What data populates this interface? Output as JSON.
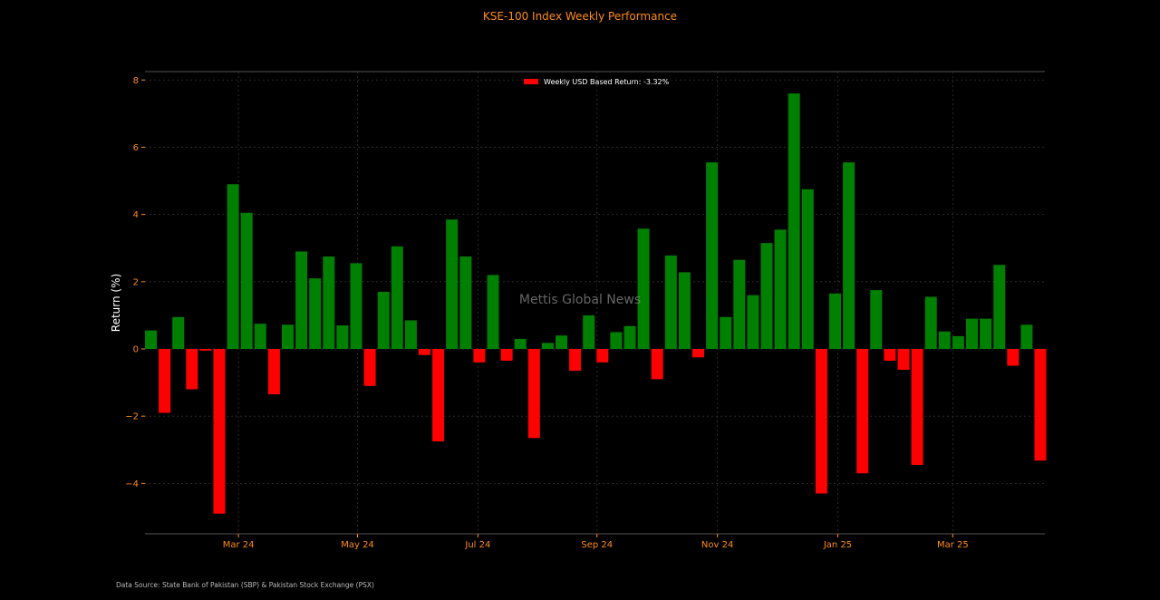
{
  "chart_data": {
    "type": "bar",
    "title": "KSE-100 Index Weekly Performance",
    "ylabel": "Return (%)",
    "xlabel": "",
    "ylim": [
      -5.5,
      8.25
    ],
    "yticks": [
      -4,
      -2,
      0,
      2,
      4,
      6,
      8
    ],
    "ytick_labels": [
      "−4",
      "−2",
      "0",
      "2",
      "4",
      "6",
      "8"
    ],
    "xticks": [
      {
        "label": "Mar 24",
        "week_index": 6.4
      },
      {
        "label": "May 24",
        "week_index": 15.1
      },
      {
        "label": "Jul 24",
        "week_index": 23.9
      },
      {
        "label": "Sep 24",
        "week_index": 32.6
      },
      {
        "label": "Nov 24",
        "week_index": 41.4
      },
      {
        "label": "Jan 25",
        "week_index": 50.2
      },
      {
        "label": "Mar 25",
        "week_index": 58.6
      }
    ],
    "values": [
      0.55,
      -1.9,
      0.95,
      -1.2,
      -0.05,
      -4.9,
      4.9,
      4.05,
      0.75,
      -1.35,
      0.72,
      2.9,
      2.1,
      2.75,
      0.7,
      2.55,
      -1.1,
      1.7,
      3.05,
      0.85,
      -0.18,
      -2.75,
      3.85,
      2.75,
      -0.4,
      2.2,
      -0.35,
      0.3,
      -2.65,
      0.18,
      0.4,
      -0.65,
      1.0,
      -0.4,
      0.5,
      0.68,
      3.58,
      -0.9,
      2.78,
      2.28,
      -0.25,
      5.55,
      0.95,
      2.65,
      1.6,
      3.15,
      3.55,
      7.6,
      4.75,
      -4.3,
      1.65,
      5.55,
      -3.7,
      1.75,
      -0.35,
      -0.62,
      -3.45,
      1.55,
      0.52,
      0.38,
      0.9,
      0.9,
      2.5,
      -0.5,
      0.72,
      -3.32
    ],
    "colors": {
      "positive": "#008000",
      "negative": "#ff0000"
    },
    "legend": {
      "label": "Weekly USD Based Return: -3.32%",
      "color": "#ff0000",
      "placement": "top-center"
    },
    "grid": true,
    "watermark": "Mettis Global News",
    "source": "Data Source: State Bank of Pakistan (SBP) & Pakistan Stock Exchange (PSX)",
    "accent_color": "#ff8c1a"
  }
}
